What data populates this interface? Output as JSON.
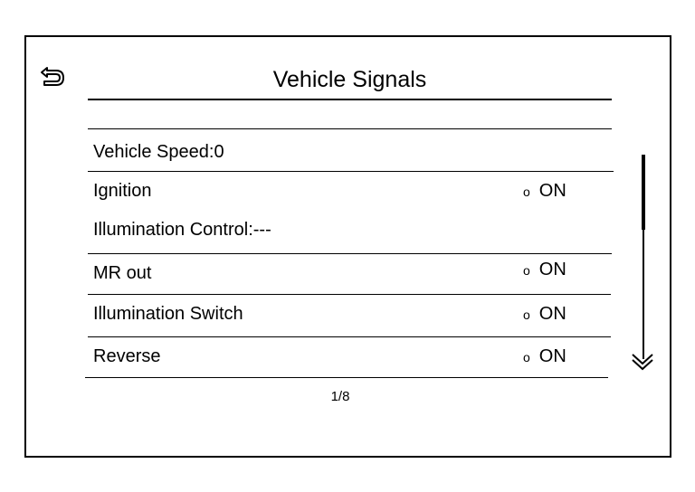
{
  "header": {
    "title": "Vehicle Signals",
    "back_icon": "back-return-icon"
  },
  "signals": [
    {
      "label": "Vehicle Speed:0",
      "status": ""
    },
    {
      "label": "Ignition",
      "status": "ON"
    },
    {
      "label": "Illumination Control:---",
      "status": ""
    },
    {
      "label": "MR out",
      "status": "ON"
    },
    {
      "label": "Illumination Switch",
      "status": "ON"
    },
    {
      "label": "Reverse",
      "status": "ON"
    }
  ],
  "status_indicator": "o",
  "pagination": {
    "text": "1/8"
  },
  "scroll": {
    "position_fraction": 0.0,
    "down_icon": "double-chevron-down-icon"
  }
}
